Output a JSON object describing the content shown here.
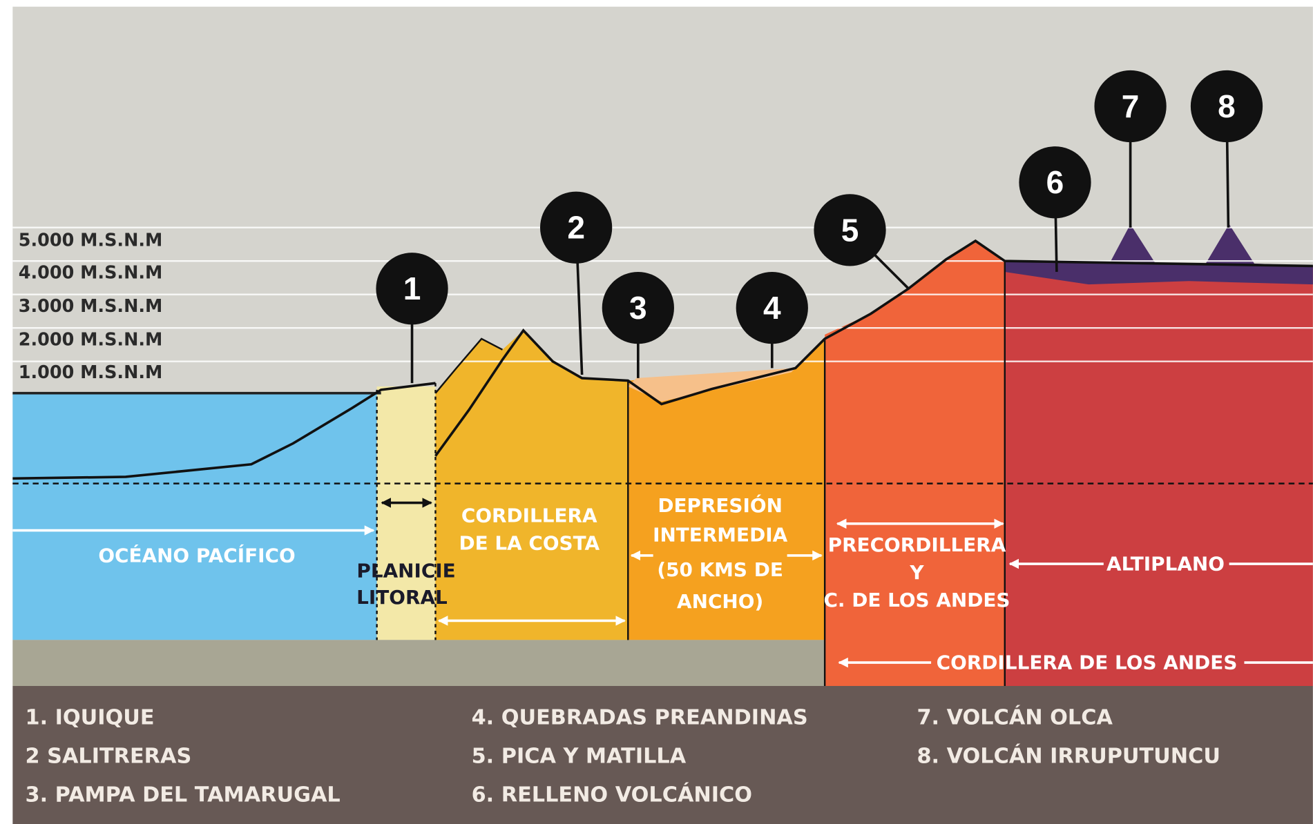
{
  "altitude_labels": [
    "5.000 M.S.N.M",
    "4.000 M.S.N.M",
    "3.000 M.S.N.M",
    "2.000 M.S.N.M",
    "1.000 M.S.N.M"
  ],
  "markers": [
    "1",
    "2",
    "3",
    "4",
    "5",
    "6",
    "7",
    "8"
  ],
  "zones": [
    [
      "OCÉANO PACÍFICO"
    ],
    [
      "PLANICIE",
      "LITORAL"
    ],
    [
      "CORDILLERA",
      "DE LA COSTA"
    ],
    [
      "DEPRESIÓN",
      "INTERMEDIA",
      "(50 KMS DE",
      "ANCHO)"
    ],
    [
      "PRECORDILLERA",
      "Y",
      "C. DE LOS ANDES"
    ],
    [
      "ALTIPLANO"
    ],
    [
      "CORDILLERA DE LOS ANDES"
    ]
  ],
  "legend": [
    "1. IQUIQUE",
    "2 SALITRERAS",
    "3. PAMPA DEL TAMARUGAL",
    "4. QUEBRADAS PREANDINAS",
    "5. PICA Y MATILLA",
    "6. RELLENO VOLCÁNICO",
    "7. VOLCÁN OLCA",
    "8. VOLCÁN IRRUPUTUNCU"
  ]
}
